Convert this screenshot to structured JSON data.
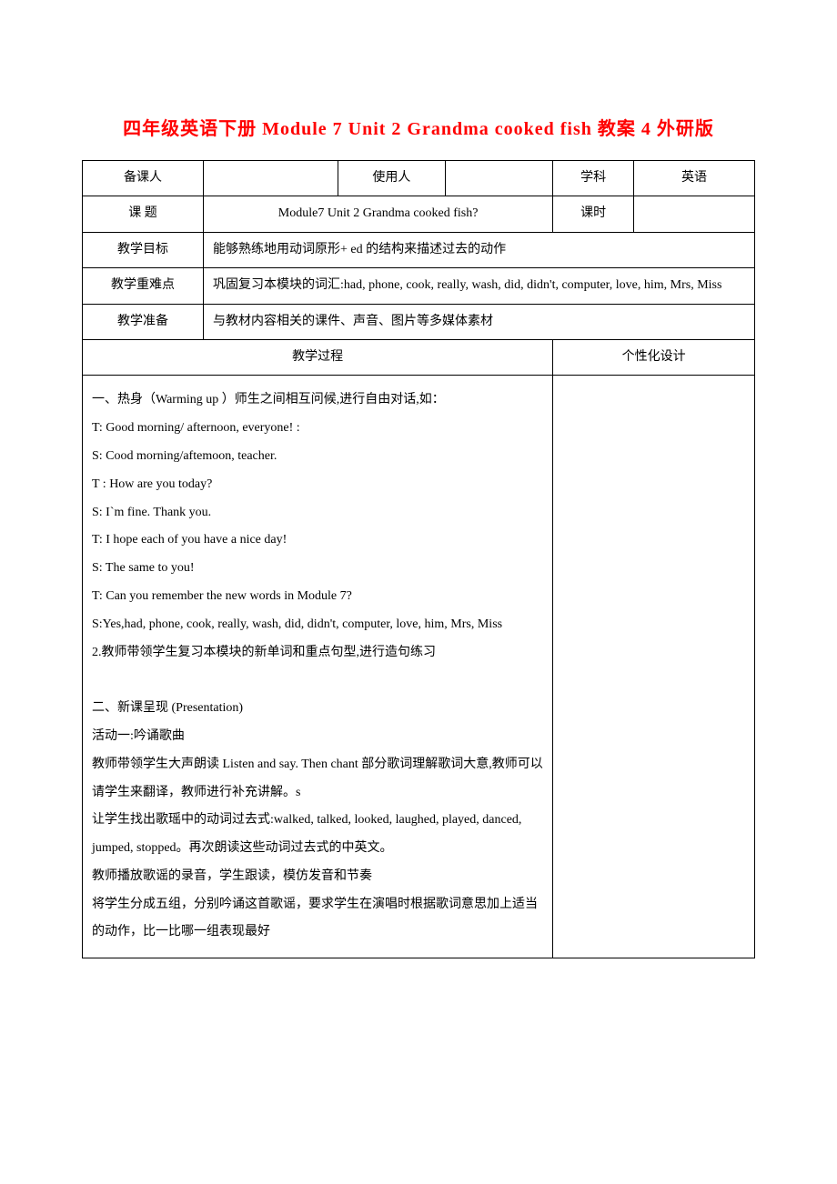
{
  "title": "四年级英语下册 Module 7 Unit 2 Grandma cooked fish 教案 4 外研版",
  "header": {
    "labels": {
      "preparer": "备课人",
      "user": "使用人",
      "subject_label": "学科",
      "subject_value": "英语",
      "topic_label": "课  题",
      "topic_value": "Module7 Unit 2 Grandma cooked fish?",
      "period_label": "课时",
      "objective_label": "教学目标",
      "objective_value": "能够熟练地用动词原形+   ed 的结构来描述过去的动作",
      "keypoint_label": "教学重难点",
      "keypoint_value": "巩固复习本模块的词汇:had,   phone,  cook,  really,  wash,  did,  didn't, computer, love, him, Mrs, Miss",
      "prep_label": "教学准备",
      "prep_value": "与教材内容相关的课件、声音、图片等多媒体素材",
      "process_label": "教学过程",
      "personal_label": "个性化设计"
    }
  },
  "body": {
    "lines": [
      "一、热身（Warming up ）师生之间相互问候,进行自由对话,如：",
      "T: Good morning/ afternoon, everyone! :",
      "S: Cood morning/aftemoon, teacher.",
      "T : How are you today?",
      "S: I`m fine. Thank you.",
      "T: I hope each of you have a nice day!",
      "S: The same to you!",
      "T: Can you remember the new words in Module 7?",
      "S:Yes,had, phone, cook, really, wash, did, didn't, computer, love, him, Mrs, Miss",
      "2.教师带领学生复习本模块的新单词和重点句型,进行造句练习",
      "",
      "二、新课呈现 (Presentation)",
      "活动一:吟诵歌曲",
      "教师带领学生大声朗读 Listen  and say. Then chant 部分歌词理解歌词大意,教师可以请学生来翻译，教师进行补充讲解。s",
      "让学生找出歌瑶中的动词过去式:walked,    talked,   looked,   laughed, played, danced, jumped, stopped。再次朗读这些动词过去式的中英文。",
      "教师播放歌谣的录音，学生跟读，模仿发音和节奏",
      "将学生分成五组，分别吟诵这首歌谣，要求学生在演唱时根据歌词意思加上适当的动作，比一比哪一组表现最好"
    ]
  },
  "colors": {
    "title": "#ff0000",
    "text": "#000000",
    "border": "#000000",
    "background": "#ffffff"
  },
  "typography": {
    "title_fontsize": 20,
    "body_fontsize": 14,
    "font_family": "SimSun"
  }
}
